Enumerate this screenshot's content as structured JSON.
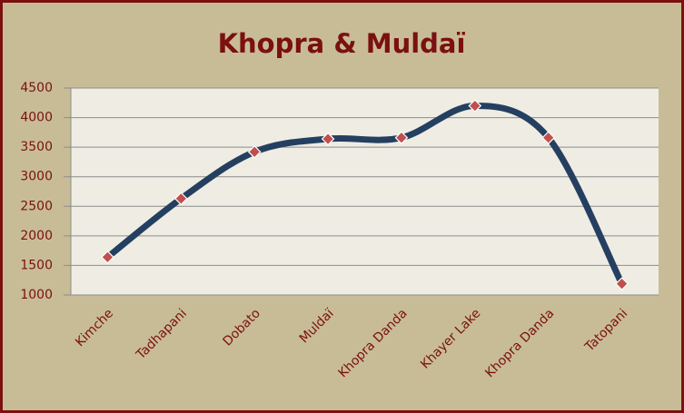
{
  "chart_data": {
    "type": "line",
    "title": "Khopra & Muldaï",
    "categories": [
      "Kimche",
      "Tadhapani",
      "Dobato",
      "Muldaï",
      "Khopra Danda",
      "Khayer Lake",
      "Khopra Danda",
      "Tatopani"
    ],
    "series": [
      {
        "color": "#243f60",
        "marker_color": "#c0504d",
        "values": [
          1640,
          2630,
          3420,
          3640,
          3660,
          4200,
          3660,
          1190
        ]
      }
    ],
    "ylim": [
      1000,
      4500
    ],
    "yticks": [
      1000,
      1500,
      2000,
      2500,
      3000,
      3500,
      4000,
      4500
    ],
    "grid": true,
    "smooth": true
  }
}
